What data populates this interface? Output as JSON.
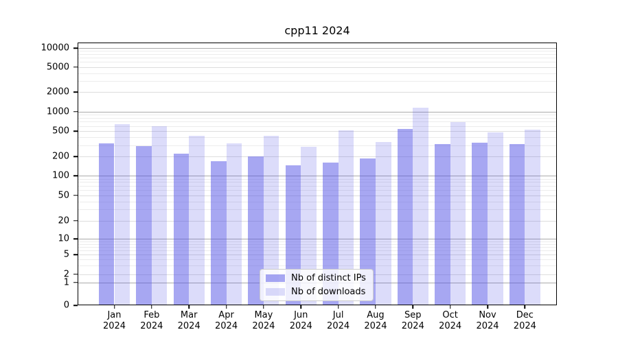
{
  "title": "cpp11 2024",
  "y_axis": {
    "tick_labels": [
      "0",
      "1",
      "2",
      "5",
      "10",
      "20",
      "50",
      "100",
      "200",
      "500",
      "1000",
      "2000",
      "5000",
      "10000"
    ]
  },
  "legend": {
    "items": [
      "Nb of distinct IPs",
      "Nb of downloads"
    ]
  },
  "colors": {
    "ips_bar": "rgba(80,80,230,0.5)",
    "downloads_bar": "rgba(80,80,230,0.2)",
    "major_gridline": "#aaaaaa",
    "tick_gridline": "#dddddd",
    "minor_gridline": "#ececec",
    "axis": "#000000",
    "legend_border": "#cccccc"
  },
  "chart_data": {
    "type": "bar",
    "title": "cpp11 2024",
    "categories": [
      "Jan 2024",
      "Feb 2024",
      "Mar 2024",
      "Apr 2024",
      "May 2024",
      "Jun 2024",
      "Jul 2024",
      "Aug 2024",
      "Sep 2024",
      "Oct 2024",
      "Nov 2024",
      "Dec 2024"
    ],
    "series": [
      {
        "name": "Nb of distinct IPs",
        "values": [
          325,
          290,
          220,
          170,
          200,
          145,
          160,
          185,
          540,
          310,
          330,
          310
        ]
      },
      {
        "name": "Nb of downloads",
        "values": [
          640,
          590,
          420,
          320,
          425,
          285,
          510,
          340,
          1150,
          680,
          480,
          530
        ]
      }
    ],
    "yscale": "symlog",
    "ylim": [
      0,
      13000
    ],
    "yticks": [
      0,
      1,
      2,
      5,
      10,
      20,
      50,
      100,
      200,
      500,
      1000,
      2000,
      5000,
      10000
    ],
    "grid": true,
    "legend_position": "lower center"
  }
}
